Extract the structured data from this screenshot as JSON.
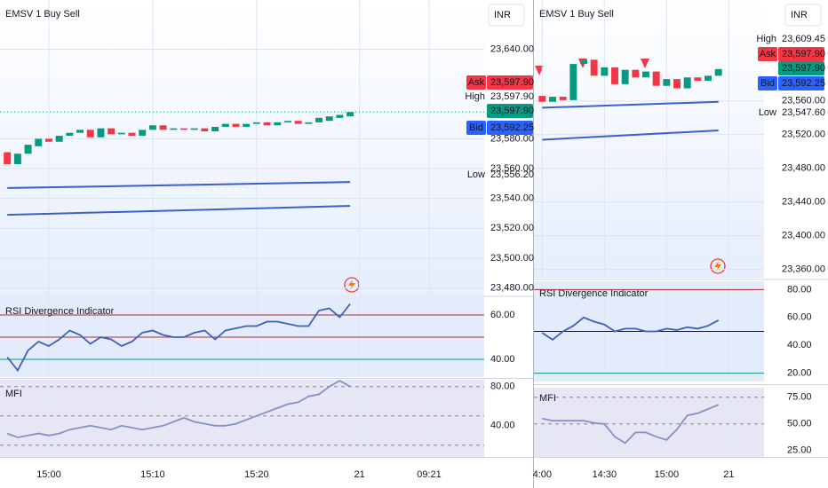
{
  "chart_data": [
    {
      "type": "candlestick",
      "title": "EMSV 1 Buy Sell",
      "currency": "INR",
      "open": [
        23571,
        23563,
        23570,
        23575,
        23580,
        23578,
        23582,
        23584,
        23586,
        23581,
        23587,
        23583,
        23584,
        23582,
        23586,
        23589,
        23586,
        23587,
        23586,
        23587,
        23585,
        23588,
        23590,
        23588,
        23590,
        23591,
        23589,
        23591,
        23592,
        23590,
        23591,
        23592,
        23594,
        23595
      ],
      "close": [
        23563,
        23570,
        23576,
        23580,
        23578,
        23582,
        23584,
        23586,
        23581,
        23587,
        23583,
        23584,
        23582,
        23586,
        23589,
        23586,
        23587,
        23586,
        23587,
        23585,
        23588,
        23590,
        23588,
        23590,
        23591,
        23589,
        23591,
        23592,
        23590,
        23591,
        23594,
        23595,
        23596,
        23597.9
      ],
      "up_color": "#089981",
      "down_color": "#f23645",
      "bands": [
        {
          "values": [
            23547,
            23551
          ],
          "color": "#3b5fd0"
        },
        {
          "values": [
            23529,
            23535
          ],
          "color": "#3b5fd0"
        }
      ],
      "xlim": [
        -0.7,
        45.9
      ],
      "xticks": [
        {
          "value": 4,
          "label": "15:00"
        },
        {
          "value": 14,
          "label": "15:10"
        },
        {
          "value": 24,
          "label": "15:20"
        },
        {
          "value": 33.9,
          "label": "21"
        },
        {
          "value": 40.6,
          "label": "09:21"
        }
      ],
      "ylim": [
        23475,
        23673
      ],
      "yticks": [
        {
          "value": 23640,
          "label": "23,640.00"
        },
        {
          "value": 23580,
          "label": "23,580.00"
        },
        {
          "value": 23560,
          "label": "23,560.00"
        },
        {
          "value": 23540,
          "label": "23,540.00"
        },
        {
          "value": 23520,
          "label": "23,520.00"
        },
        {
          "value": 23500,
          "label": "23,500.00"
        },
        {
          "value": 23480,
          "label": "23,480.00"
        }
      ],
      "price_labels": [
        {
          "name": "Ask",
          "value": 23597.9,
          "label": "23,597.90",
          "color": "#f23645"
        },
        {
          "name": "High",
          "value": 23597.9,
          "label": "23,597.90"
        },
        {
          "value": 23597.9,
          "label": "23,597.90",
          "color": "#089981"
        },
        {
          "name": "Bid",
          "value": 23592.25,
          "label": "23,592.25",
          "color": "#2962ff"
        },
        {
          "name": "Low",
          "value": 23556.2,
          "label": "23,556.20"
        }
      ]
    },
    {
      "type": "line",
      "title": "RSI Divergence Indicator",
      "color": "#3d5fc0",
      "values": [
        41,
        35,
        44,
        48,
        46,
        49,
        53,
        51,
        47,
        50,
        49,
        46,
        48,
        52,
        53,
        51,
        50,
        50,
        52,
        53,
        49,
        53,
        54,
        55,
        55,
        57,
        57,
        56,
        55,
        55,
        62,
        63,
        59,
        65
      ],
      "xlim": [
        -0.7,
        45.9
      ],
      "ylim": [
        32,
        68
      ],
      "yticks": [
        {
          "value": 60,
          "label": "60.00"
        },
        {
          "value": 40,
          "label": "40.00"
        }
      ],
      "levels": [
        {
          "value": 60,
          "color": "#b22833"
        },
        {
          "value": 50,
          "color": "#b22833"
        },
        {
          "value": 40,
          "color": "#089981"
        }
      ]
    },
    {
      "type": "line",
      "title": "MFI",
      "color": "#8590c8",
      "values": [
        32,
        28,
        30,
        32,
        30,
        32,
        36,
        38,
        40,
        38,
        36,
        40,
        38,
        36,
        38,
        40,
        44,
        48,
        44,
        42,
        40,
        40,
        42,
        46,
        50,
        54,
        58,
        62,
        64,
        70,
        72,
        80,
        86,
        80
      ],
      "xlim": [
        -0.7,
        45.9
      ],
      "ylim": [
        8,
        87
      ],
      "yticks": [
        {
          "value": 80,
          "label": "80.00"
        },
        {
          "value": 40,
          "label": "40.00"
        }
      ],
      "levels": [
        {
          "value": 80,
          "color": "#888888",
          "dashed": true
        },
        {
          "value": 50,
          "color": "#888888",
          "dashed": true
        },
        {
          "value": 20,
          "color": "#888888",
          "dashed": true
        }
      ]
    },
    {
      "type": "candlestick",
      "title": "EMSV 1 Buy Sell",
      "currency": "INR",
      "open": [
        23566,
        23559,
        23565,
        23561,
        23604,
        23609,
        23590,
        23600,
        23580,
        23597,
        23588,
        23595,
        23578,
        23586,
        23575,
        23588,
        23584,
        23590
      ],
      "close": [
        23559,
        23565,
        23561,
        23604,
        23609,
        23590,
        23600,
        23580,
        23597,
        23588,
        23595,
        23578,
        23586,
        23575,
        23588,
        23584,
        23590,
        23597.9
      ],
      "up_color": "#089981",
      "down_color": "#f23645",
      "bands": [
        {
          "values": [
            23552,
            23559
          ],
          "color": "#3b5fd0"
        },
        {
          "values": [
            23514,
            23525
          ],
          "color": "#3b5fd0"
        }
      ],
      "xlim": [
        -0.8,
        21.4
      ],
      "xticks": [
        {
          "value": 0,
          "label": "4:00"
        },
        {
          "value": 6,
          "label": "14:30"
        },
        {
          "value": 12,
          "label": "15:00"
        },
        {
          "value": 18,
          "label": "21"
        }
      ],
      "ylim": [
        23350,
        23680
      ],
      "yticks": [
        {
          "value": 23560,
          "label": "23,560.00"
        },
        {
          "value": 23520,
          "label": "23,520.00"
        },
        {
          "value": 23480,
          "label": "23,480.00"
        },
        {
          "value": 23440,
          "label": "23,440.00"
        },
        {
          "value": 23400,
          "label": "23,400.00"
        },
        {
          "value": 23360,
          "label": "23,360.00"
        }
      ],
      "price_labels": [
        {
          "name": "High",
          "value": 23609.45,
          "label": "23,609.45"
        },
        {
          "name": "Ask",
          "value": 23597.9,
          "label": "23,597.90",
          "color": "#f23645"
        },
        {
          "value": 23597.9,
          "label": "23,597.90",
          "color": "#089981"
        },
        {
          "name": "Bid",
          "value": 23592.25,
          "label": "23,592.25",
          "color": "#2962ff"
        },
        {
          "name": "Low",
          "value": 23547.6,
          "label": "23,547.60"
        }
      ]
    },
    {
      "type": "line",
      "title": "RSI Divergence Indicator",
      "color": "#3d5fc0",
      "values": [
        49,
        44,
        50,
        54,
        60,
        57,
        55,
        50,
        52,
        52,
        50,
        50,
        52,
        51,
        53,
        52,
        54,
        58
      ],
      "xlim": [
        -0.8,
        21.4
      ],
      "ylim": [
        14,
        86
      ],
      "yticks": [
        {
          "value": 80,
          "label": "80.00"
        },
        {
          "value": 60,
          "label": "60.00"
        },
        {
          "value": 40,
          "label": "40.00"
        },
        {
          "value": 20,
          "label": "20.00"
        }
      ],
      "levels": [
        {
          "value": 80,
          "color": "#b22833"
        },
        {
          "value": 50,
          "color": "#131722"
        },
        {
          "value": 20,
          "color": "#089981"
        }
      ]
    },
    {
      "type": "line",
      "title": "MFI",
      "color": "#8590c8",
      "values": [
        55,
        53,
        53,
        53,
        53,
        51,
        50,
        38,
        32,
        42,
        42,
        38,
        35,
        45,
        58,
        60,
        64,
        68
      ],
      "xlim": [
        -0.8,
        21.4
      ],
      "ylim": [
        19,
        84
      ],
      "yticks": [
        {
          "value": 75,
          "label": "75.00"
        },
        {
          "value": 50,
          "label": "50.00"
        },
        {
          "value": 25,
          "label": "25.00"
        }
      ],
      "levels": [
        {
          "value": 75,
          "color": "#888888",
          "dashed": true
        },
        {
          "value": 50,
          "color": "#888888",
          "dashed": true
        }
      ]
    }
  ]
}
